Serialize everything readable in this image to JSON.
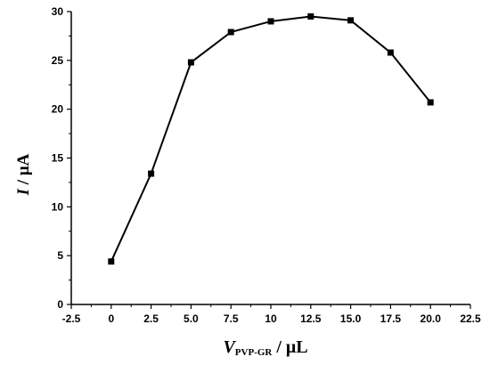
{
  "chart_data": {
    "type": "line",
    "title": "",
    "xlabel": {
      "var": "V",
      "sub": "PVP-GR",
      "unit": " / μL"
    },
    "ylabel": {
      "var": "I",
      "unit": " / μA"
    },
    "xlim": [
      -2.5,
      22.5
    ],
    "ylim": [
      0,
      30
    ],
    "x_ticks": [
      -2.5,
      0,
      2.5,
      5.0,
      7.5,
      10,
      12.5,
      15.0,
      17.5,
      20.0,
      22.5
    ],
    "x_tick_labels": [
      "-2.5",
      "0",
      "2.5",
      "5.0",
      "7.5",
      "10",
      "12.5",
      "15.0",
      "17.5",
      "20.0",
      "22.5"
    ],
    "y_ticks": [
      0,
      5,
      10,
      15,
      20,
      25,
      30
    ],
    "y_tick_labels": [
      "0",
      "5",
      "10",
      "15",
      "20",
      "25",
      "30"
    ],
    "grid": false,
    "legend": "none",
    "series": [
      {
        "x": [
          0,
          2.5,
          5.0,
          7.5,
          10,
          12.5,
          15.0,
          17.5,
          20.0
        ],
        "y": [
          4.4,
          13.4,
          24.8,
          27.9,
          29.0,
          29.5,
          29.1,
          25.8,
          20.7
        ],
        "marker": "square",
        "color": "#000000"
      }
    ]
  }
}
